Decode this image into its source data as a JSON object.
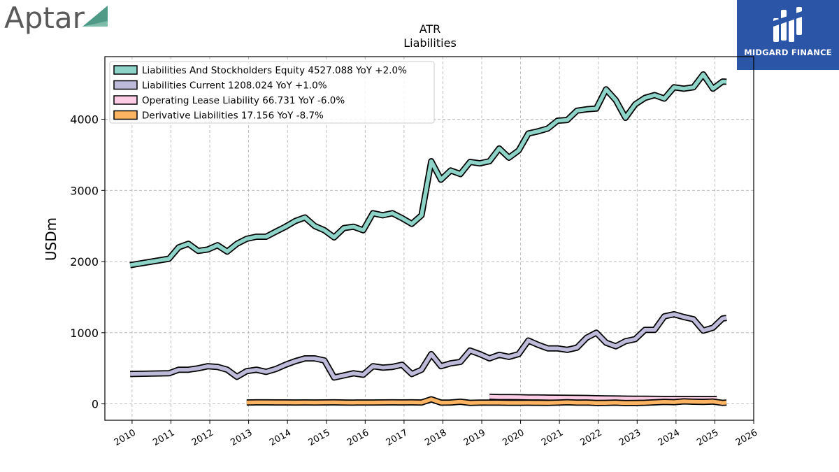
{
  "branding": {
    "company_logo_text": "Aptar",
    "company_logo_color": "#4f9a87",
    "sponsor_logo_text": "MIDGARD FINANCE",
    "sponsor_logo_bg": "#2b55a6"
  },
  "chart_data": {
    "type": "line",
    "title": "ATR",
    "subtitle": "Liabilities",
    "ylabel": "USDm",
    "xlabel": "",
    "xlim": [
      2009.3,
      2026
    ],
    "ylim": [
      -230,
      4880
    ],
    "yticks": [
      0,
      1000,
      2000,
      3000,
      4000
    ],
    "xticks": [
      2010,
      2011,
      2012,
      2013,
      2014,
      2015,
      2016,
      2017,
      2018,
      2019,
      2020,
      2021,
      2022,
      2023,
      2024,
      2025,
      2026
    ],
    "grid": true,
    "legend_position": "top-left",
    "series": [
      {
        "name": "Liabilities And Stockholders Equity",
        "legend": "Liabilities And Stockholders Equity  4527.088 YoY +2.0%",
        "color": "#8dd3c7",
        "x": [
          2009.95,
          2010.95,
          2011.2,
          2011.45,
          2011.7,
          2011.95,
          2012.2,
          2012.45,
          2012.7,
          2012.95,
          2013.2,
          2013.45,
          2013.7,
          2013.95,
          2014.2,
          2014.45,
          2014.7,
          2014.95,
          2015.2,
          2015.45,
          2015.7,
          2015.95,
          2016.2,
          2016.45,
          2016.7,
          2016.95,
          2017.2,
          2017.45,
          2017.7,
          2017.95,
          2018.2,
          2018.45,
          2018.7,
          2018.95,
          2019.2,
          2019.45,
          2019.7,
          2019.95,
          2020.2,
          2020.45,
          2020.7,
          2020.95,
          2021.2,
          2021.45,
          2021.7,
          2021.95,
          2022.2,
          2022.45,
          2022.7,
          2022.95,
          2023.2,
          2023.45,
          2023.7,
          2023.95,
          2024.2,
          2024.45,
          2024.7,
          2024.95,
          2025.2,
          2025.3
        ],
        "y": [
          1950,
          2040,
          2200,
          2250,
          2150,
          2170,
          2230,
          2140,
          2250,
          2320,
          2350,
          2350,
          2420,
          2490,
          2570,
          2620,
          2500,
          2440,
          2340,
          2470,
          2490,
          2440,
          2680,
          2650,
          2680,
          2610,
          2530,
          2650,
          3410,
          3150,
          3280,
          3230,
          3400,
          3380,
          3410,
          3590,
          3460,
          3560,
          3800,
          3830,
          3870,
          3980,
          3990,
          4120,
          4140,
          4150,
          4420,
          4270,
          4020,
          4210,
          4300,
          4340,
          4290,
          4450,
          4430,
          4450,
          4630,
          4430,
          4530,
          4527
        ]
      },
      {
        "name": "Liabilities Current",
        "legend": "Liabilities Current  1208.024 YoY +1.0%",
        "color": "#bebada",
        "x": [
          2009.95,
          2010.95,
          2011.2,
          2011.45,
          2011.7,
          2011.95,
          2012.2,
          2012.45,
          2012.7,
          2012.95,
          2013.2,
          2013.45,
          2013.7,
          2013.95,
          2014.2,
          2014.45,
          2014.7,
          2014.95,
          2015.2,
          2015.45,
          2015.7,
          2015.95,
          2016.2,
          2016.45,
          2016.7,
          2016.95,
          2017.2,
          2017.45,
          2017.7,
          2017.95,
          2018.2,
          2018.45,
          2018.7,
          2018.95,
          2019.2,
          2019.45,
          2019.7,
          2019.95,
          2020.2,
          2020.45,
          2020.7,
          2020.95,
          2021.2,
          2021.45,
          2021.7,
          2021.95,
          2022.2,
          2022.45,
          2022.7,
          2022.95,
          2023.2,
          2023.45,
          2023.7,
          2023.95,
          2024.2,
          2024.45,
          2024.7,
          2024.95,
          2025.2,
          2025.3
        ],
        "y": [
          420,
          430,
          480,
          480,
          500,
          530,
          520,
          480,
          380,
          460,
          480,
          450,
          490,
          550,
          600,
          640,
          640,
          610,
          370,
          400,
          430,
          410,
          530,
          510,
          520,
          550,
          420,
          480,
          700,
          530,
          570,
          590,
          750,
          700,
          640,
          690,
          660,
          700,
          890,
          830,
          780,
          780,
          760,
          790,
          930,
          1000,
          860,
          810,
          880,
          910,
          1040,
          1040,
          1230,
          1260,
          1220,
          1190,
          1030,
          1070,
          1200,
          1208
        ]
      },
      {
        "name": "Operating Lease Liability",
        "legend": "Operating Lease Liability  66.731 YoY -6.0%",
        "color": "#fccde5",
        "x": [
          2019.2,
          2019.45,
          2019.7,
          2019.95,
          2020.2,
          2020.45,
          2020.7,
          2020.95,
          2021.2,
          2021.45,
          2021.7,
          2021.95,
          2022.2,
          2022.45,
          2022.7,
          2022.95,
          2023.2,
          2023.45,
          2023.7,
          2023.95,
          2024.2,
          2024.45,
          2024.7,
          2024.95,
          2025.05
        ],
        "y": [
          100,
          95,
          95,
          94,
          90,
          90,
          88,
          87,
          85,
          84,
          83,
          80,
          78,
          76,
          74,
          73,
          72,
          71,
          70,
          70,
          69,
          69,
          68,
          67,
          66.7
        ]
      },
      {
        "name": "Derivative Liabilities",
        "legend": "Derivative Liabilities  17.156 YoY -8.7%",
        "color": "#fdb462",
        "x": [
          2012.95,
          2013.2,
          2013.45,
          2013.7,
          2013.95,
          2014.2,
          2014.45,
          2014.7,
          2014.95,
          2015.2,
          2015.45,
          2015.7,
          2015.95,
          2016.2,
          2016.45,
          2016.7,
          2016.95,
          2017.2,
          2017.45,
          2017.7,
          2017.95,
          2018.2,
          2018.45,
          2018.7,
          2018.95,
          2019.2,
          2019.45,
          2019.7,
          2019.95,
          2020.2,
          2020.45,
          2020.7,
          2020.95,
          2021.2,
          2021.45,
          2021.7,
          2021.95,
          2022.2,
          2022.45,
          2022.7,
          2022.95,
          2023.2,
          2023.45,
          2023.7,
          2023.95,
          2024.2,
          2024.45,
          2024.7,
          2024.95,
          2025.2,
          2025.3
        ],
        "y": [
          20,
          22,
          22,
          21,
          21,
          20,
          21,
          20,
          21,
          22,
          20,
          19,
          20,
          20,
          21,
          22,
          21,
          22,
          20,
          65,
          18,
          20,
          30,
          15,
          18,
          19,
          18,
          16,
          16,
          17,
          16,
          15,
          18,
          24,
          18,
          20,
          14,
          15,
          18,
          12,
          14,
          16,
          22,
          28,
          25,
          35,
          30,
          28,
          32,
          15,
          17.2
        ]
      }
    ]
  }
}
